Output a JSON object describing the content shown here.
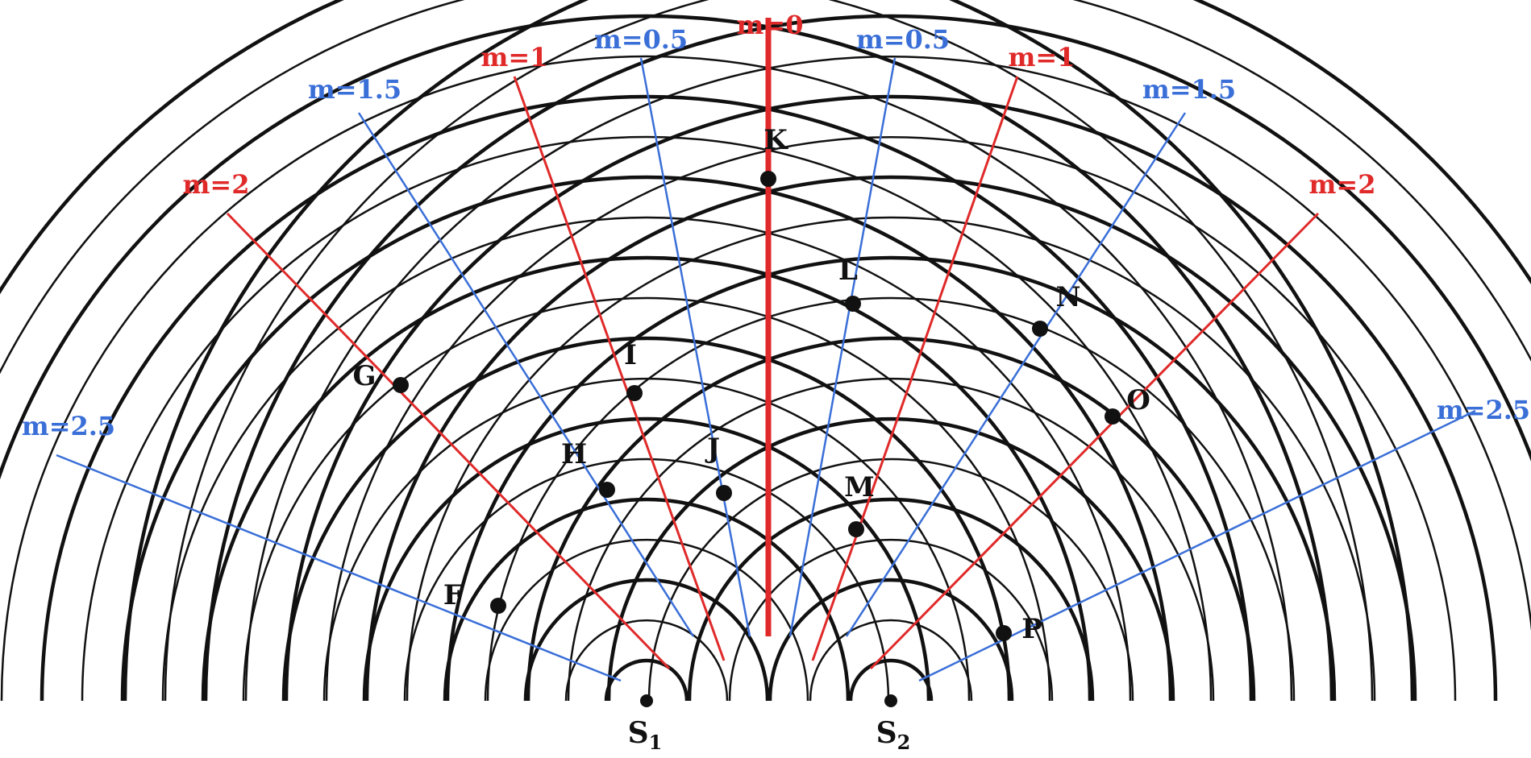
{
  "diagram": {
    "sources": [
      {
        "id": "s1",
        "base": "S",
        "sub": "1"
      },
      {
        "id": "s2",
        "base": "S",
        "sub": "2"
      }
    ],
    "order_lines": [
      {
        "id": "m0",
        "label": "m=0",
        "type": "constructive",
        "m": 0
      },
      {
        "id": "m1-left",
        "label": "m=1",
        "type": "constructive",
        "m": 1,
        "side": "left"
      },
      {
        "id": "m1-right",
        "label": "m=1",
        "type": "constructive",
        "m": 1,
        "side": "right"
      },
      {
        "id": "m2-left",
        "label": "m=2",
        "type": "constructive",
        "m": 2,
        "side": "left"
      },
      {
        "id": "m2-right",
        "label": "m=2",
        "type": "constructive",
        "m": 2,
        "side": "right"
      },
      {
        "id": "m05-left",
        "label": "m=0.5",
        "type": "destructive",
        "m": 0.5,
        "side": "left"
      },
      {
        "id": "m05-right",
        "label": "m=0.5",
        "type": "destructive",
        "m": 0.5,
        "side": "right"
      },
      {
        "id": "m15-left",
        "label": "m=1.5",
        "type": "destructive",
        "m": 1.5,
        "side": "left"
      },
      {
        "id": "m15-right",
        "label": "m=1.5",
        "type": "destructive",
        "m": 1.5,
        "side": "right"
      },
      {
        "id": "m25-left",
        "label": "m=2.5",
        "type": "destructive",
        "m": 2.5,
        "side": "left"
      },
      {
        "id": "m25-right",
        "label": "m=2.5",
        "type": "destructive",
        "m": 2.5,
        "side": "right"
      }
    ],
    "points": [
      {
        "id": "E",
        "label": "F"
      },
      {
        "id": "F",
        "label": "G"
      },
      {
        "id": "G",
        "label": "H"
      },
      {
        "id": "H",
        "label": "I"
      },
      {
        "id": "I",
        "label": "J"
      },
      {
        "id": "J",
        "label": "K"
      },
      {
        "id": "K",
        "label": "L"
      },
      {
        "id": "L",
        "label": "M"
      },
      {
        "id": "M",
        "label": "N"
      },
      {
        "id": "N",
        "label": "O"
      },
      {
        "id": "O",
        "label": "P"
      }
    ],
    "colors": {
      "constructive": "#e02a2a",
      "destructive": "#3a6fd8",
      "wavefront": "#111111",
      "background": "#ffffff"
    }
  }
}
